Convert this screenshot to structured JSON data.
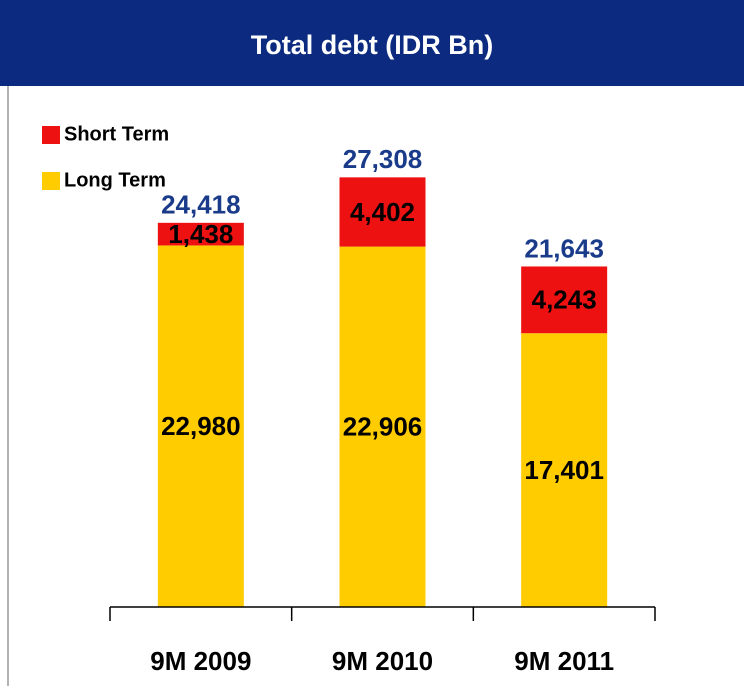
{
  "chart_data": {
    "type": "stacked_bar",
    "title": "Total debt (IDR Bn)",
    "categories": [
      "9M 2009",
      "9M 2010",
      "9M 2011"
    ],
    "series": [
      {
        "name": "Long Term",
        "color": "#ffcc00",
        "values": [
          22980,
          22906,
          17401
        ],
        "value_labels": [
          "22,980",
          "22,906",
          "17,401"
        ]
      },
      {
        "name": "Short Term",
        "color": "#ee1111",
        "values": [
          1438,
          4402,
          4243
        ],
        "value_labels": [
          "1,438",
          "4,402",
          "4,243"
        ]
      }
    ],
    "totals": [
      24418,
      27308,
      21643
    ],
    "total_labels": [
      "24,418",
      "27,308",
      "21,643"
    ],
    "ylim": [
      0,
      30000
    ],
    "legend": "top-left"
  }
}
